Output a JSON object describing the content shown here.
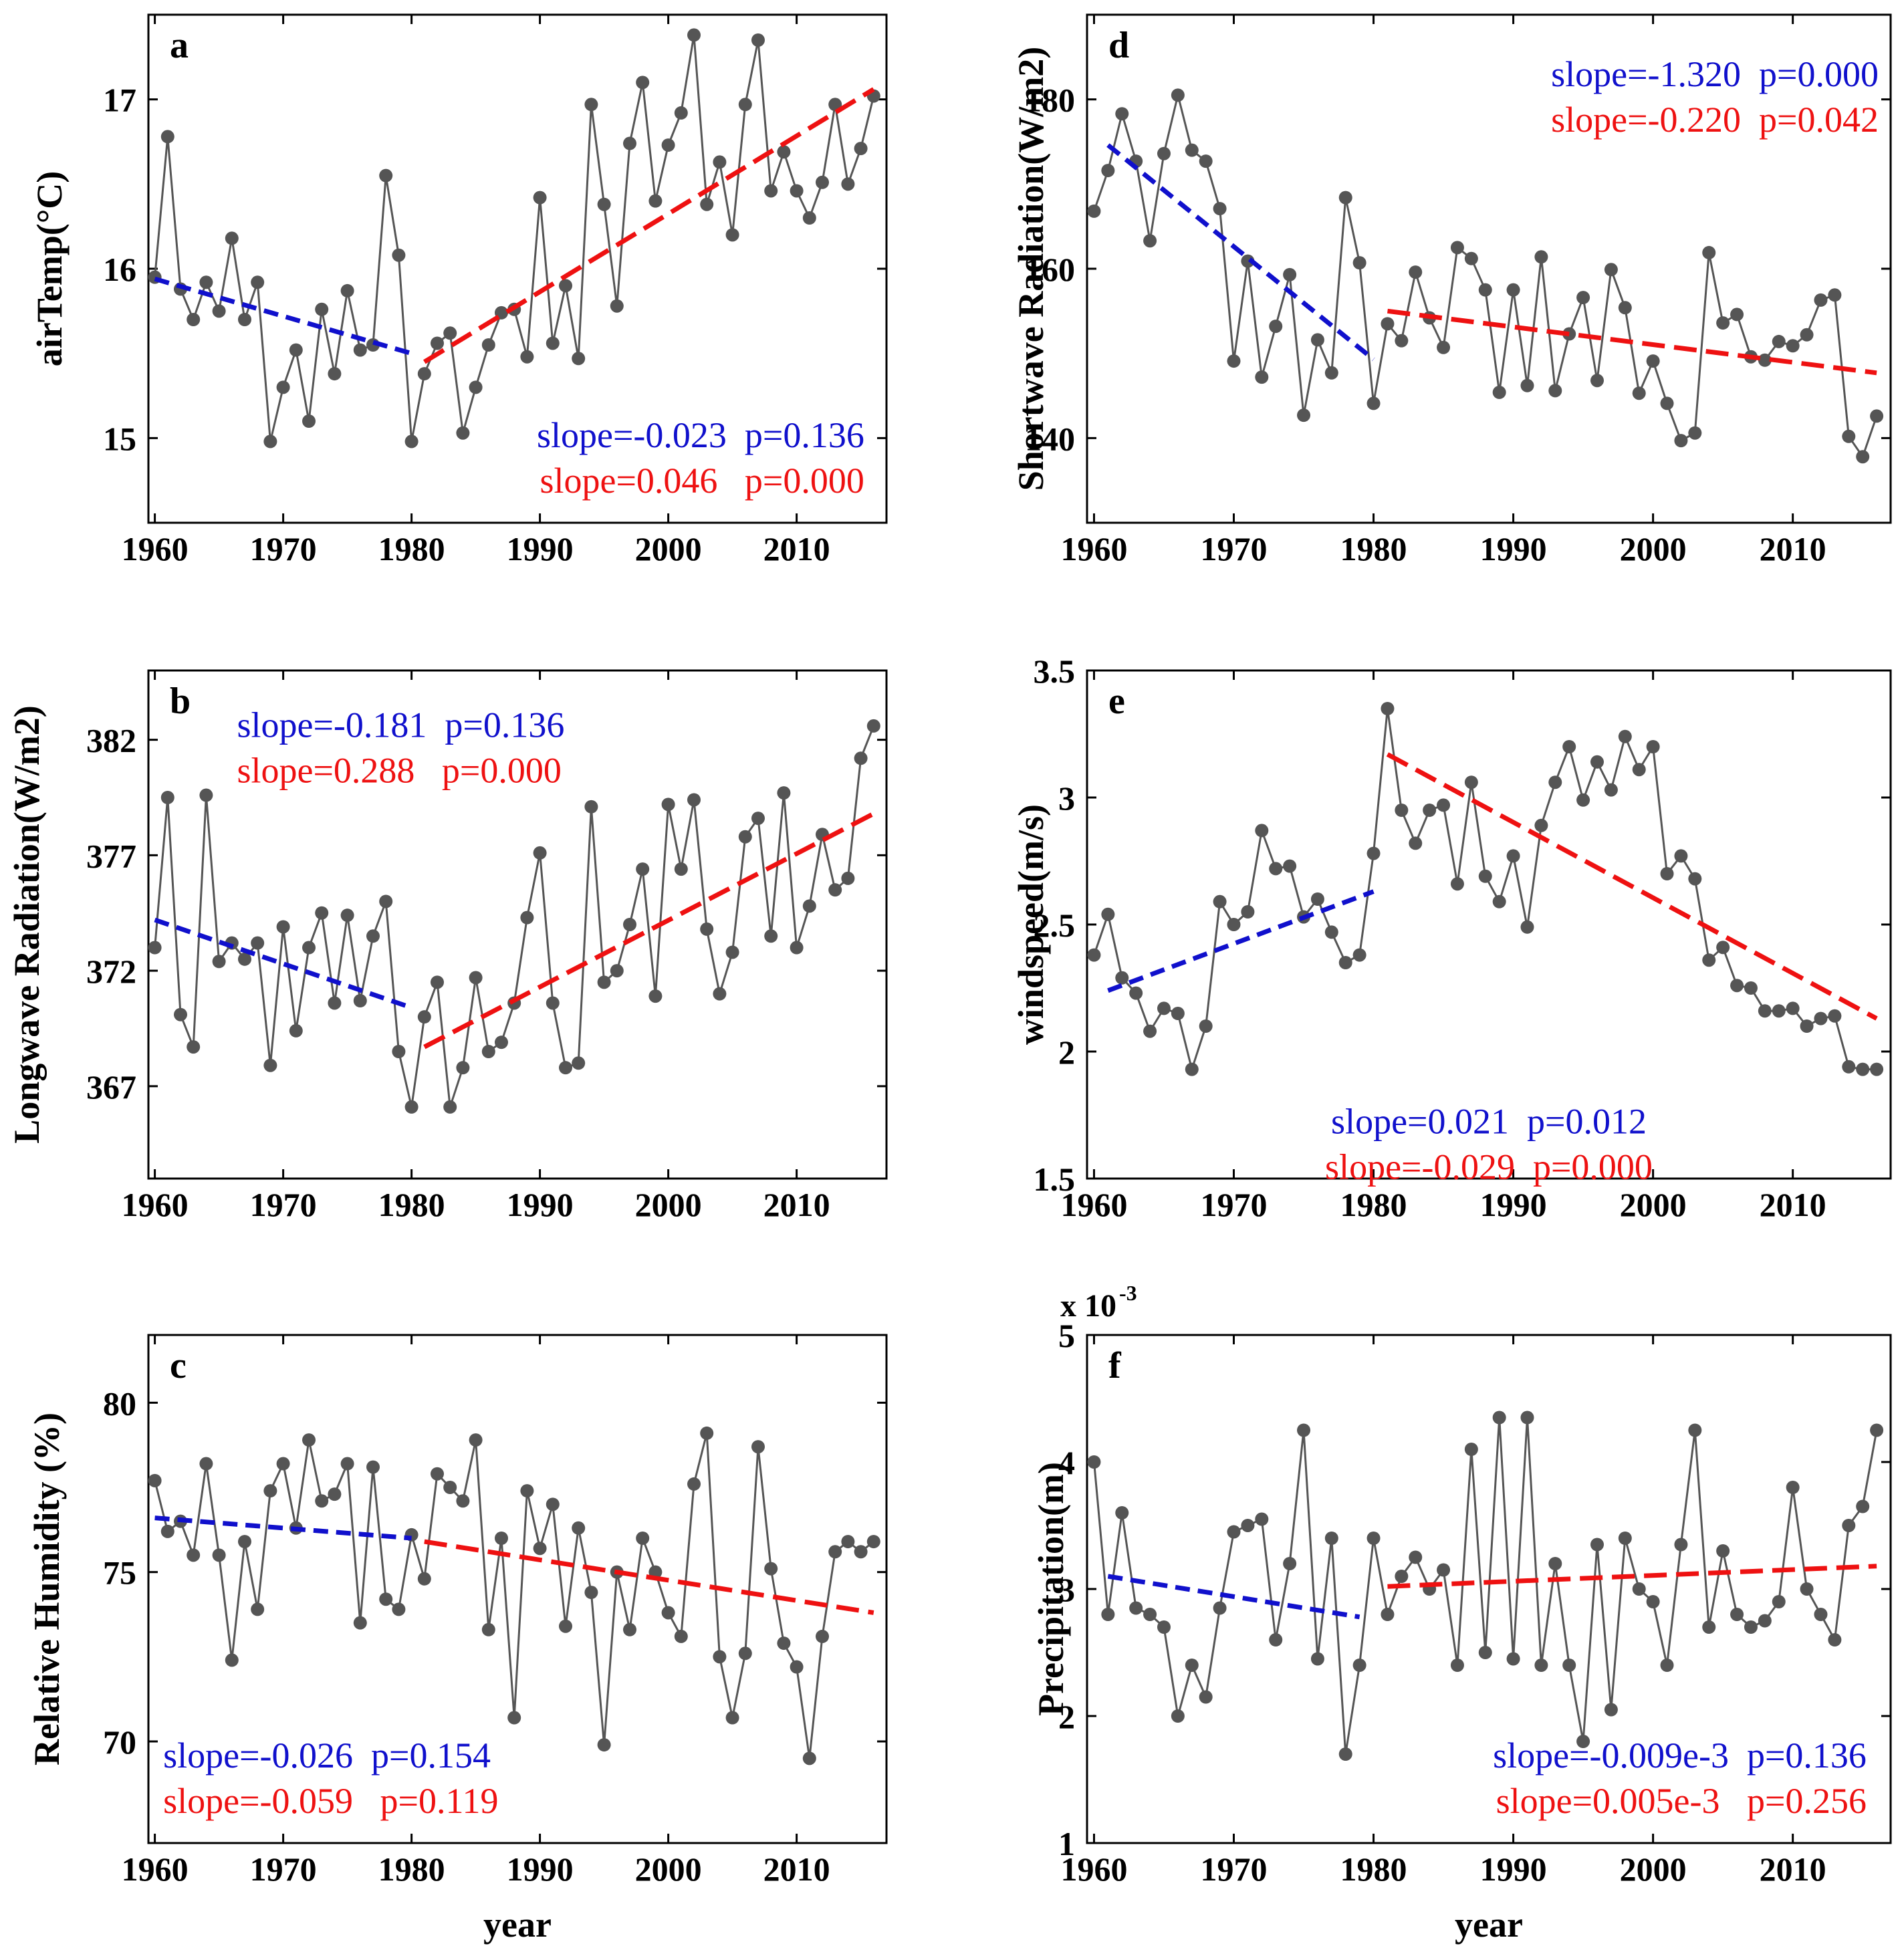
{
  "figure": {
    "xlabel": "year",
    "colors": {
      "data": "#555555",
      "early_trend": "#1010cc",
      "late_trend": "#ee1111",
      "axis": "#000000"
    }
  },
  "chart_data": [
    {
      "id": "a",
      "type": "line",
      "panel_label": "a",
      "ylabel": "airTemp(°C)",
      "xlim": [
        1959.5,
        2017
      ],
      "ylim": [
        14.5,
        17.5
      ],
      "xticks": [
        1960,
        1970,
        1980,
        1990,
        2000,
        2010
      ],
      "yticks": [
        15,
        16,
        17
      ],
      "ytick_labels": [
        "15",
        "16",
        "17"
      ],
      "xlabel": "",
      "x_start": 1960,
      "values": [
        15.95,
        16.78,
        15.88,
        15.7,
        15.92,
        15.75,
        16.18,
        15.7,
        15.92,
        14.98,
        15.3,
        15.52,
        15.1,
        15.76,
        15.38,
        15.87,
        15.52,
        15.55,
        16.55,
        16.08,
        14.98,
        15.38,
        15.56,
        15.62,
        15.03,
        15.3,
        15.55,
        15.74,
        15.76,
        15.48,
        16.42,
        15.56,
        15.9,
        15.47,
        16.97,
        16.38,
        15.78,
        16.74,
        17.1,
        16.4,
        16.73,
        16.92,
        17.38,
        16.38,
        16.63,
        16.2,
        16.97,
        17.35,
        16.46,
        16.69,
        16.46,
        16.3,
        16.51,
        16.97,
        16.5,
        16.71,
        17.02
      ],
      "trends": [
        {
          "segment": "early",
          "x": [
            1960,
            1980
          ],
          "y": [
            15.94,
            15.5
          ]
        },
        {
          "segment": "late",
          "x": [
            1981,
            2016
          ],
          "y": [
            15.45,
            17.06
          ]
        }
      ],
      "annotations": {
        "early": "slope=-0.023  p=0.136",
        "late": "slope=0.046   p=0.000",
        "placement": "bottom-right"
      }
    },
    {
      "id": "b",
      "type": "line",
      "panel_label": "b",
      "ylabel": "Longwave Radiation(W/m2)",
      "xlim": [
        1959.5,
        2017
      ],
      "ylim": [
        363,
        385
      ],
      "xticks": [
        1960,
        1970,
        1980,
        1990,
        2000,
        2010
      ],
      "yticks": [
        367,
        372,
        377,
        382
      ],
      "ytick_labels": [
        "367",
        "372",
        "377",
        "382"
      ],
      "xlabel": "",
      "x_start": 1960,
      "values": [
        373.0,
        379.5,
        370.1,
        368.7,
        379.6,
        372.4,
        373.2,
        372.5,
        373.2,
        367.9,
        373.9,
        369.4,
        373.0,
        374.5,
        370.6,
        374.4,
        370.7,
        373.5,
        375.0,
        368.5,
        366.1,
        370.0,
        371.5,
        366.1,
        367.8,
        371.7,
        368.5,
        368.9,
        370.6,
        374.3,
        377.1,
        370.6,
        367.8,
        368.0,
        379.1,
        371.5,
        372.0,
        374.0,
        376.4,
        370.9,
        379.2,
        376.4,
        379.4,
        373.8,
        371.0,
        372.8,
        377.8,
        378.6,
        373.5,
        379.7,
        373.0,
        374.8,
        377.9,
        375.5,
        376.0,
        381.2,
        382.6
      ],
      "trends": [
        {
          "segment": "early",
          "x": [
            1960,
            1980
          ],
          "y": [
            374.2,
            370.4
          ]
        },
        {
          "segment": "late",
          "x": [
            1981,
            2016
          ],
          "y": [
            368.7,
            378.8
          ]
        }
      ],
      "annotations": {
        "early": "slope=-0.181  p=0.136",
        "late": "slope=0.288   p=0.000",
        "placement": "top"
      }
    },
    {
      "id": "c",
      "type": "line",
      "panel_label": "c",
      "ylabel": "Relative Humidity (%)",
      "xlim": [
        1959.5,
        2017
      ],
      "ylim": [
        67,
        82
      ],
      "xticks": [
        1960,
        1970,
        1980,
        1990,
        2000,
        2010
      ],
      "yticks": [
        70,
        75,
        80
      ],
      "ytick_labels": [
        "70",
        "75",
        "80"
      ],
      "xlabel": "year",
      "x_start": 1960,
      "values": [
        77.7,
        76.2,
        76.5,
        75.5,
        78.2,
        75.5,
        72.4,
        75.9,
        73.9,
        77.4,
        78.2,
        76.3,
        78.9,
        77.1,
        77.3,
        78.2,
        73.5,
        78.1,
        74.2,
        73.9,
        76.1,
        74.8,
        77.9,
        77.5,
        77.1,
        78.9,
        73.3,
        76.0,
        70.7,
        77.4,
        75.7,
        77.0,
        73.4,
        76.3,
        74.4,
        69.9,
        75.0,
        73.3,
        76.0,
        75.0,
        73.8,
        73.1,
        77.6,
        79.1,
        72.5,
        70.7,
        72.6,
        78.7,
        75.1,
        72.9,
        72.2,
        69.5,
        73.1,
        75.6,
        75.9,
        75.6,
        75.9
      ],
      "trends": [
        {
          "segment": "early",
          "x": [
            1960,
            1980
          ],
          "y": [
            76.6,
            76.0
          ]
        },
        {
          "segment": "late",
          "x": [
            1981,
            2016
          ],
          "y": [
            75.9,
            73.8
          ]
        }
      ],
      "annotations": {
        "early": "slope=-0.026  p=0.154",
        "late": "slope=-0.059   p=0.119",
        "placement": "bottom-left"
      }
    },
    {
      "id": "d",
      "type": "line",
      "panel_label": "d",
      "ylabel": "Shortwave Radiation(W/m2)",
      "xlim": [
        1959.5,
        2017
      ],
      "ylim": [
        130,
        190
      ],
      "xticks": [
        1960,
        1970,
        1980,
        1990,
        2000,
        2010
      ],
      "yticks": [
        140,
        160,
        180
      ],
      "ytick_labels": [
        "140",
        "160",
        "180"
      ],
      "xlabel": "",
      "x_start": 1960,
      "values": [
        166.8,
        171.6,
        178.3,
        172.7,
        163.3,
        173.6,
        180.5,
        174.0,
        172.7,
        167.1,
        149.1,
        160.9,
        147.2,
        153.2,
        159.3,
        142.7,
        151.6,
        147.7,
        168.4,
        160.7,
        144.1,
        153.5,
        151.5,
        159.6,
        154.2,
        150.7,
        162.5,
        161.2,
        157.5,
        145.4,
        157.5,
        146.2,
        161.4,
        145.6,
        152.3,
        156.6,
        146.8,
        159.9,
        155.4,
        145.3,
        149.1,
        144.1,
        139.7,
        140.6,
        161.9,
        153.6,
        154.6,
        149.6,
        149.2,
        151.4,
        150.9,
        152.2,
        156.3,
        156.9,
        140.2,
        137.8,
        142.6
      ],
      "trends": [
        {
          "segment": "early",
          "x": [
            1961,
            1980
          ],
          "y": [
            174.6,
            149.3
          ]
        },
        {
          "segment": "late",
          "x": [
            1981,
            2016
          ],
          "y": [
            155.0,
            147.7
          ]
        }
      ],
      "annotations": {
        "early": "slope=-1.320  p=0.000",
        "late": "slope=-0.220  p=0.042",
        "placement": "top-right"
      }
    },
    {
      "id": "e",
      "type": "line",
      "panel_label": "e",
      "ylabel": "windspeed(m/s)",
      "xlim": [
        1959.5,
        2017
      ],
      "ylim": [
        1.5,
        3.5
      ],
      "xticks": [
        1960,
        1970,
        1980,
        1990,
        2000,
        2010
      ],
      "yticks": [
        1.5,
        2,
        2.5,
        3,
        3.5
      ],
      "ytick_labels": [
        "1.5",
        "2",
        "2.5",
        "3",
        "3.5"
      ],
      "xlabel": "",
      "x_start": 1960,
      "values": [
        2.38,
        2.54,
        2.29,
        2.23,
        2.08,
        2.17,
        2.15,
        1.93,
        2.1,
        2.59,
        2.5,
        2.55,
        2.87,
        2.72,
        2.73,
        2.53,
        2.6,
        2.47,
        2.35,
        2.38,
        2.78,
        3.35,
        2.95,
        2.82,
        2.95,
        2.97,
        2.66,
        3.06,
        2.69,
        2.59,
        2.77,
        2.49,
        2.89,
        3.06,
        3.2,
        2.99,
        3.14,
        3.03,
        3.24,
        3.11,
        3.2,
        2.7,
        2.77,
        2.68,
        2.36,
        2.41,
        2.26,
        2.25,
        2.16,
        2.16,
        2.17,
        2.1,
        2.13,
        2.14,
        1.94,
        1.93,
        1.93
      ],
      "trends": [
        {
          "segment": "early",
          "x": [
            1961,
            1980
          ],
          "y": [
            2.24,
            2.63
          ]
        },
        {
          "segment": "late",
          "x": [
            1981,
            2016
          ],
          "y": [
            3.17,
            2.13
          ]
        }
      ],
      "annotations": {
        "early": "slope=0.021  p=0.012",
        "late": "slope=-0.029  p=0.000",
        "placement": "bottom"
      }
    },
    {
      "id": "f",
      "type": "line",
      "panel_label": "f",
      "ylabel": "Precipitation(m)",
      "xlim": [
        1959.5,
        2017
      ],
      "ylim": [
        1,
        5
      ],
      "xticks": [
        1960,
        1970,
        1980,
        1990,
        2000,
        2010
      ],
      "yticks": [
        1,
        2,
        3,
        4,
        5
      ],
      "ytick_labels": [
        "1",
        "2",
        "3",
        "4",
        "5"
      ],
      "xlabel": "year",
      "multiplier_prefix": "x 10",
      "multiplier_exp": "-3",
      "x_start": 1960,
      "values": [
        4.0,
        2.8,
        3.6,
        2.85,
        2.8,
        2.7,
        2.0,
        2.4,
        2.15,
        2.85,
        3.45,
        3.5,
        3.55,
        2.6,
        3.2,
        4.25,
        2.45,
        3.4,
        1.7,
        2.4,
        3.4,
        2.8,
        3.1,
        3.25,
        3.0,
        3.15,
        2.4,
        4.1,
        2.5,
        4.35,
        2.45,
        4.35,
        2.4,
        3.2,
        2.4,
        1.8,
        3.35,
        2.05,
        3.4,
        3.0,
        2.9,
        2.4,
        3.35,
        4.25,
        2.7,
        3.3,
        2.8,
        2.7,
        2.75,
        2.9,
        3.8,
        3.0,
        2.8,
        2.6,
        3.5,
        3.65,
        4.25
      ],
      "trends": [
        {
          "segment": "early",
          "x": [
            1961,
            1979
          ],
          "y": [
            3.1,
            2.78
          ]
        },
        {
          "segment": "late",
          "x": [
            1981,
            2016
          ],
          "y": [
            3.02,
            3.18
          ]
        }
      ],
      "annotations": {
        "early": "slope=-0.009e-3  p=0.136",
        "late": "slope=0.005e-3   p=0.256",
        "placement": "bottom-right"
      }
    }
  ]
}
